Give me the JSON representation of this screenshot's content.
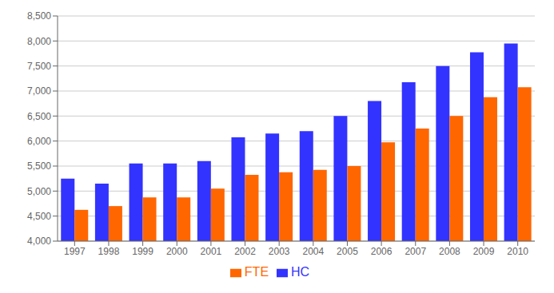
{
  "chart_data": {
    "type": "bar",
    "categories": [
      "1997",
      "1998",
      "1999",
      "2000",
      "2001",
      "2002",
      "2003",
      "2004",
      "2005",
      "2006",
      "2007",
      "2008",
      "2009",
      "2010"
    ],
    "series": [
      {
        "name": "HC",
        "color": "#3333FF",
        "values": [
          5250,
          5150,
          5550,
          5550,
          5600,
          6075,
          6150,
          6200,
          6500,
          6800,
          7175,
          7500,
          7775,
          7950
        ]
      },
      {
        "name": "FTE",
        "color": "#FF6600",
        "values": [
          4625,
          4700,
          4875,
          4875,
          5050,
          5325,
          5375,
          5425,
          5500,
          5975,
          6250,
          6500,
          6875,
          7075
        ]
      }
    ],
    "ylim": [
      4000,
      8500
    ],
    "yticks": [
      {
        "value": 4000,
        "label": "4,000"
      },
      {
        "value": 4500,
        "label": "4,500"
      },
      {
        "value": 5000,
        "label": "5,000"
      },
      {
        "value": 5500,
        "label": "5,500"
      },
      {
        "value": 6000,
        "label": "6,000"
      },
      {
        "value": 6500,
        "label": "6,500"
      },
      {
        "value": 7000,
        "label": "7,000"
      },
      {
        "value": 7500,
        "label": "7,500"
      },
      {
        "value": 8000,
        "label": "8,000"
      },
      {
        "value": 8500,
        "label": "8,500"
      }
    ],
    "grid": true,
    "legend": "bottom"
  }
}
